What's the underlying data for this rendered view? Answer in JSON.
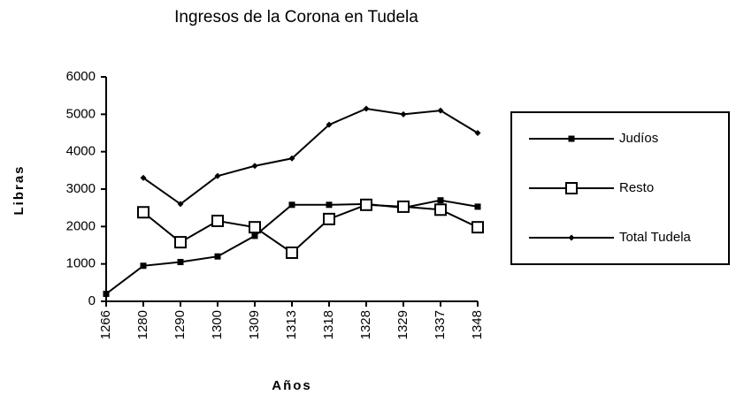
{
  "chart_data": {
    "type": "line",
    "title": "Ingresos de la Corona en Tudela",
    "x_label": "Años",
    "y_label": "Libras",
    "categories": [
      "1266",
      "1280",
      "1290",
      "1300",
      "1309",
      "1313",
      "1318",
      "1328",
      "1329",
      "1337",
      "1348"
    ],
    "series": [
      {
        "name": "Judíos",
        "color": "#000000",
        "marker": "square",
        "values": [
          200,
          950,
          1050,
          1200,
          1750,
          2580,
          2580,
          2600,
          2500,
          2700,
          2530
        ]
      },
      {
        "name": "Resto",
        "color": "#000000",
        "marker": "open-square",
        "values": [
          null,
          2380,
          1580,
          2150,
          1980,
          1300,
          2200,
          2580,
          2530,
          2450,
          1980
        ]
      },
      {
        "name": "Total Tudela",
        "color": "#000000",
        "marker": "diamond",
        "values": [
          null,
          3300,
          2600,
          3350,
          3620,
          3820,
          4720,
          5150,
          5000,
          5100,
          4500
        ]
      }
    ],
    "ylim": [
      0,
      6000
    ],
    "yticks": [
      0,
      1000,
      2000,
      3000,
      4000,
      5000,
      6000
    ],
    "grid": false,
    "legend": "right"
  }
}
